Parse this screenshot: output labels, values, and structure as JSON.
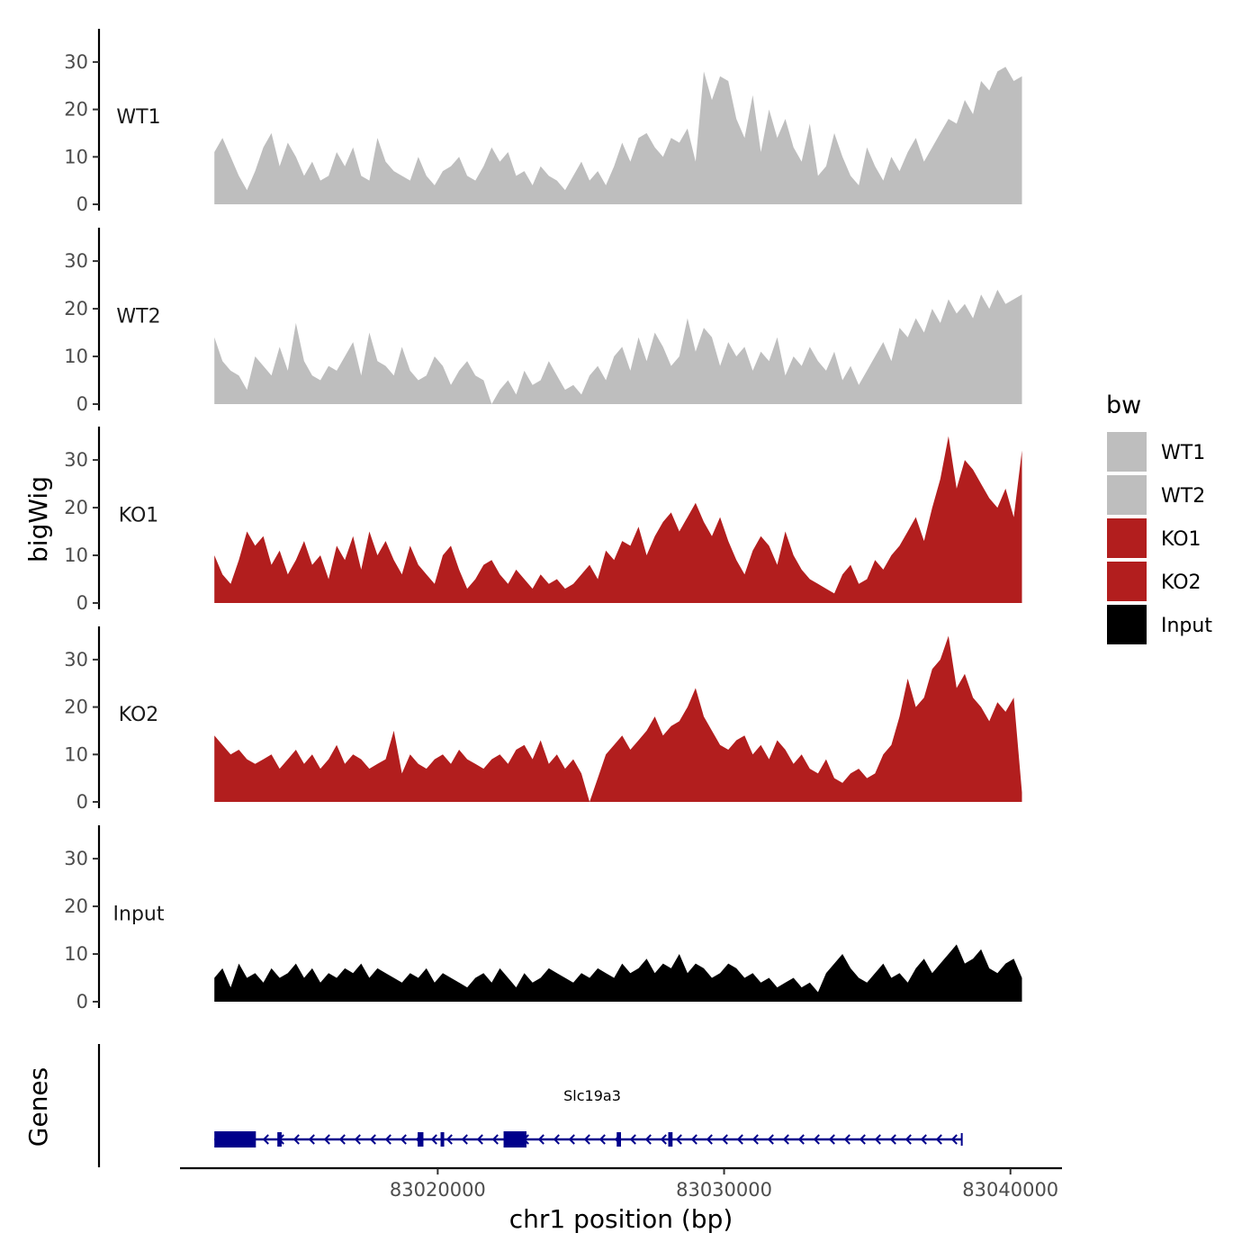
{
  "chart_data": {
    "type": "area",
    "xlabel": "chr1 position (bp)",
    "ylabel": "bigWig",
    "genes_label": "Genes",
    "xlim": [
      83011000,
      83041800
    ],
    "x_range": [
      83012200,
      83040400
    ],
    "x_ticks": [
      83020000,
      83030000,
      83040000
    ],
    "x_tick_labels": [
      "83020000",
      "83030000",
      "83040000"
    ],
    "ylim": [
      0,
      37
    ],
    "y_ticks": [
      0,
      10,
      20,
      30
    ],
    "y_tick_labels": [
      "0",
      "10",
      "20",
      "30"
    ],
    "legend": {
      "title": "bw",
      "entries": [
        {
          "label": "WT1",
          "color": "#bebebe"
        },
        {
          "label": "WT2",
          "color": "#bebebe"
        },
        {
          "label": "KO1",
          "color": "#b21e1e"
        },
        {
          "label": "KO2",
          "color": "#b21e1e"
        },
        {
          "label": "Input",
          "color": "#000000"
        }
      ]
    },
    "series": [
      {
        "name": "WT1",
        "color": "#bebebe",
        "values": [
          11,
          14,
          10,
          6,
          3,
          7,
          12,
          15,
          8,
          13,
          10,
          6,
          9,
          5,
          6,
          11,
          8,
          12,
          6,
          5,
          14,
          9,
          7,
          6,
          5,
          10,
          6,
          4,
          7,
          8,
          10,
          6,
          5,
          8,
          12,
          9,
          11,
          6,
          7,
          4,
          8,
          6,
          5,
          3,
          6,
          9,
          5,
          7,
          4,
          8,
          13,
          9,
          14,
          15,
          12,
          10,
          14,
          13,
          16,
          9,
          28,
          22,
          27,
          26,
          18,
          14,
          23,
          11,
          20,
          14,
          18,
          12,
          9,
          17,
          6,
          8,
          15,
          10,
          6,
          4,
          12,
          8,
          5,
          10,
          7,
          11,
          14,
          9,
          12,
          15,
          18,
          17,
          22,
          19,
          26,
          24,
          28,
          29,
          26,
          27
        ]
      },
      {
        "name": "WT2",
        "color": "#bebebe",
        "values": [
          14,
          9,
          7,
          6,
          3,
          10,
          8,
          6,
          12,
          7,
          17,
          9,
          6,
          5,
          8,
          7,
          10,
          13,
          6,
          15,
          9,
          8,
          6,
          12,
          7,
          5,
          6,
          10,
          8,
          4,
          7,
          9,
          6,
          5,
          0,
          3,
          5,
          2,
          7,
          4,
          5,
          9,
          6,
          3,
          4,
          2,
          6,
          8,
          5,
          10,
          12,
          7,
          14,
          9,
          15,
          12,
          8,
          10,
          18,
          11,
          16,
          14,
          8,
          13,
          10,
          12,
          7,
          11,
          9,
          14,
          6,
          10,
          8,
          12,
          9,
          7,
          11,
          5,
          8,
          4,
          7,
          10,
          13,
          9,
          16,
          14,
          18,
          15,
          20,
          17,
          22,
          19,
          21,
          18,
          23,
          20,
          24,
          21,
          22,
          23
        ]
      },
      {
        "name": "KO1",
        "color": "#b21e1e",
        "values": [
          10,
          6,
          4,
          9,
          15,
          12,
          14,
          8,
          11,
          6,
          9,
          13,
          8,
          10,
          5,
          12,
          9,
          14,
          7,
          15,
          10,
          13,
          9,
          6,
          12,
          8,
          6,
          4,
          10,
          12,
          7,
          3,
          5,
          8,
          9,
          6,
          4,
          7,
          5,
          3,
          6,
          4,
          5,
          3,
          4,
          6,
          8,
          5,
          11,
          9,
          13,
          12,
          16,
          10,
          14,
          17,
          19,
          15,
          18,
          21,
          17,
          14,
          18,
          13,
          9,
          6,
          11,
          14,
          12,
          8,
          15,
          10,
          7,
          5,
          4,
          3,
          2,
          6,
          8,
          4,
          5,
          9,
          7,
          10,
          12,
          15,
          18,
          13,
          20,
          26,
          35,
          24,
          30,
          28,
          25,
          22,
          20,
          24,
          18,
          32
        ]
      },
      {
        "name": "KO2",
        "color": "#b21e1e",
        "values": [
          14,
          12,
          10,
          11,
          9,
          8,
          9,
          10,
          7,
          9,
          11,
          8,
          10,
          7,
          9,
          12,
          8,
          10,
          9,
          7,
          8,
          9,
          15,
          6,
          10,
          8,
          7,
          9,
          10,
          8,
          11,
          9,
          8,
          7,
          9,
          10,
          8,
          11,
          12,
          9,
          13,
          8,
          10,
          7,
          9,
          6,
          0,
          5,
          10,
          12,
          14,
          11,
          13,
          15,
          18,
          14,
          16,
          17,
          20,
          24,
          18,
          15,
          12,
          11,
          13,
          14,
          10,
          12,
          9,
          13,
          11,
          8,
          10,
          7,
          6,
          9,
          5,
          4,
          6,
          7,
          5,
          6,
          10,
          12,
          18,
          26,
          20,
          22,
          28,
          30,
          35,
          24,
          27,
          22,
          20,
          17,
          21,
          19,
          22,
          2
        ]
      },
      {
        "name": "Input",
        "color": "#000000",
        "values": [
          5,
          7,
          3,
          8,
          5,
          6,
          4,
          7,
          5,
          6,
          8,
          5,
          7,
          4,
          6,
          5,
          7,
          6,
          8,
          5,
          7,
          6,
          5,
          4,
          6,
          5,
          7,
          4,
          6,
          5,
          4,
          3,
          5,
          6,
          4,
          7,
          5,
          3,
          6,
          4,
          5,
          7,
          6,
          5,
          4,
          6,
          5,
          7,
          6,
          5,
          8,
          6,
          7,
          9,
          6,
          8,
          7,
          10,
          6,
          8,
          7,
          5,
          6,
          8,
          7,
          5,
          6,
          4,
          5,
          3,
          4,
          5,
          3,
          4,
          2,
          6,
          8,
          10,
          7,
          5,
          4,
          6,
          8,
          5,
          6,
          4,
          7,
          9,
          6,
          8,
          10,
          12,
          8,
          9,
          11,
          7,
          6,
          8,
          9,
          5
        ]
      }
    ],
    "gene": {
      "name": "Slc19a3",
      "strand": "-",
      "color": "#00008b",
      "start": 83012200,
      "end": 83038300,
      "exons": [
        {
          "start": 83012200,
          "end": 83013650
        },
        {
          "start": 83014400,
          "end": 83014550
        },
        {
          "start": 83019300,
          "end": 83019500
        },
        {
          "start": 83020100,
          "end": 83020200
        },
        {
          "start": 83022300,
          "end": 83023100
        },
        {
          "start": 83026250,
          "end": 83026400
        },
        {
          "start": 83028050,
          "end": 83028200
        }
      ]
    }
  }
}
